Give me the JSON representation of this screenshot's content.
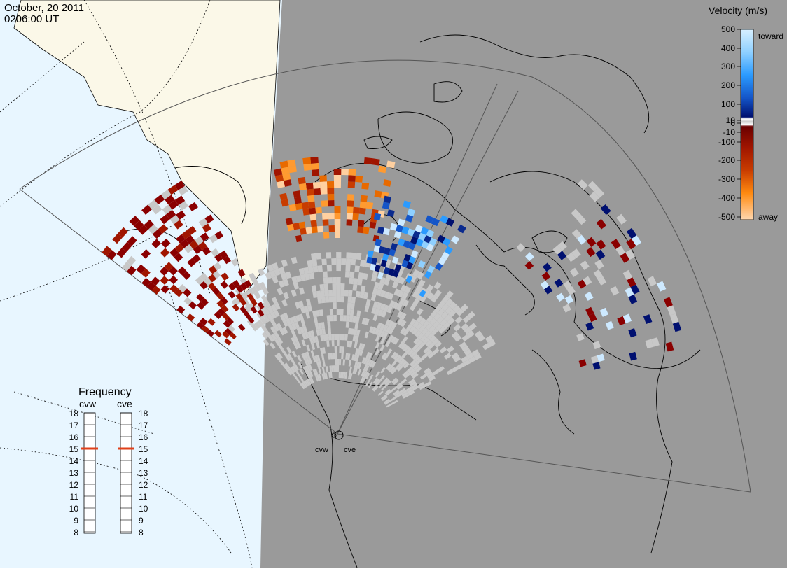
{
  "header": {
    "date": "October, 20 2011",
    "time": "0206:00 UT"
  },
  "legend": {
    "title": "Velocity (m/s)",
    "ticks": [
      "500",
      "400",
      "300",
      "200",
      "100",
      "10",
      "0",
      "-10",
      "-100",
      "-200",
      "-300",
      "-400",
      "-500"
    ],
    "toward_label": "toward",
    "away_label": "away",
    "colors": {
      "toward_scale": [
        "#cde9ff",
        "#8fd0ff",
        "#2b9bff",
        "#1455c8",
        "#0a2a8e",
        "#001070"
      ],
      "away_scale": [
        "#8a0000",
        "#a01500",
        "#c83c00",
        "#e86a00",
        "#ff9a30",
        "#ffd0a0"
      ],
      "ground_scatter": "#c8c8c8"
    }
  },
  "frequency_panel": {
    "title": "Frequency",
    "radars": [
      {
        "name": "cvw",
        "value_mhz": 15
      },
      {
        "name": "cve",
        "value_mhz": 15
      }
    ],
    "scale": [
      "18",
      "17",
      "16",
      "15",
      "14",
      "13",
      "12",
      "11",
      "10",
      "9",
      "8"
    ],
    "marker_color": "#e0401a"
  },
  "map": {
    "day_ocean_color": "#e8f6ff",
    "day_land_color": "#fbf8e8",
    "night_color": "#9a9a9a",
    "coast_color": "#000000",
    "radar_sites": [
      {
        "label": "cvw"
      },
      {
        "label": "cve"
      }
    ]
  }
}
